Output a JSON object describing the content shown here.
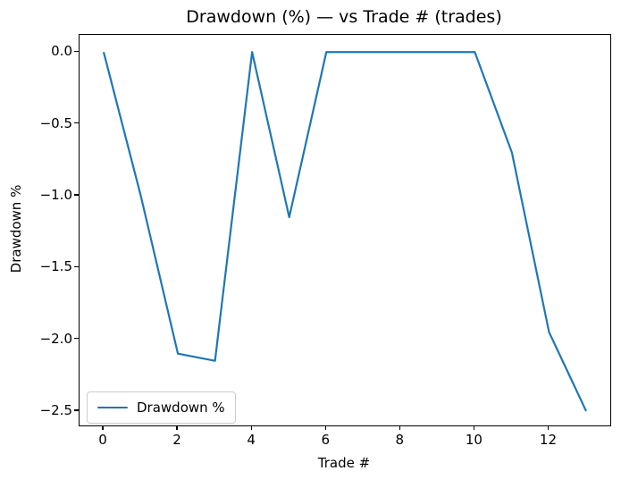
{
  "chart_data": {
    "type": "line",
    "title": "Drawdown (%) — vs Trade # (trades)",
    "xlabel": "Trade #",
    "ylabel": "Drawdown %",
    "x": [
      0,
      1,
      2,
      3,
      4,
      5,
      6,
      7,
      8,
      9,
      10,
      11,
      12,
      13
    ],
    "series": [
      {
        "name": "Drawdown %",
        "color": "#1f77b4",
        "values": [
          0.0,
          -1.0,
          -2.1,
          -2.15,
          0.0,
          -1.15,
          0.0,
          0.0,
          0.0,
          0.0,
          0.0,
          -0.7,
          -1.95,
          -2.5
        ]
      }
    ],
    "xlim": [
      -0.65,
      13.65
    ],
    "ylim": [
      -2.6,
      0.12
    ],
    "xticks": {
      "values": [
        0,
        2,
        4,
        6,
        8,
        10,
        12
      ],
      "labels": [
        "0",
        "2",
        "4",
        "6",
        "8",
        "10",
        "12"
      ]
    },
    "yticks": {
      "values": [
        0.0,
        -0.5,
        -1.0,
        -1.5,
        -2.0,
        -2.5
      ],
      "labels": [
        "0.0",
        "−0.5",
        "−1.0",
        "−1.5",
        "−2.0",
        "−2.5"
      ]
    },
    "grid": false,
    "legend": {
      "position": "lower left",
      "entries": [
        "Drawdown %"
      ]
    }
  }
}
